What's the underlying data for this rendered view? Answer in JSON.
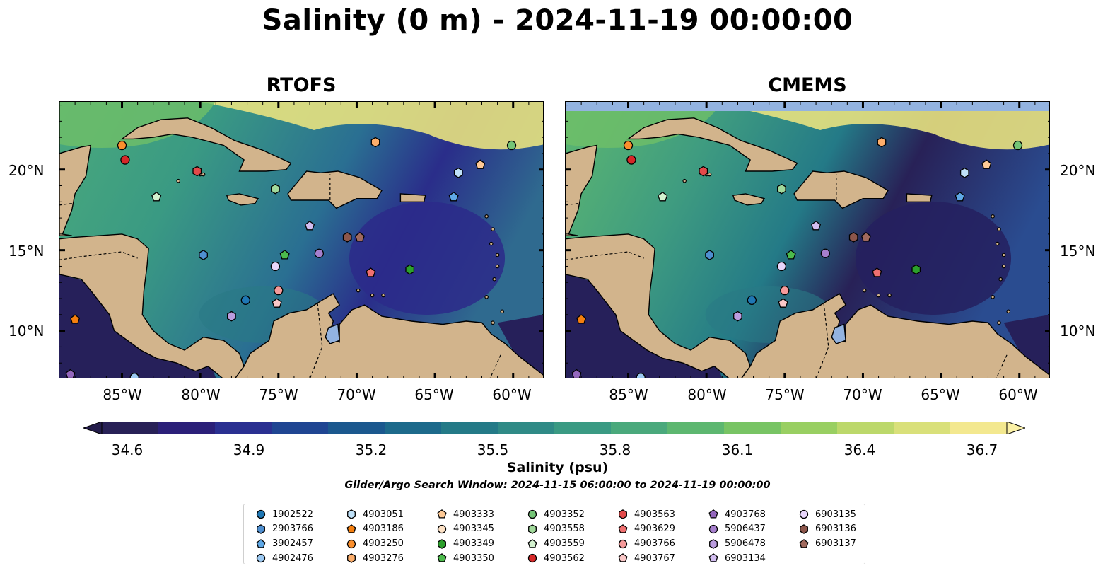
{
  "title": "Salinity (0 m) - 2024-11-19 00:00:00",
  "panels": [
    {
      "title": "RTOFS"
    },
    {
      "title": "CMEMS"
    }
  ],
  "lat_labels": [
    "20°N",
    "15°N",
    "10°N"
  ],
  "lon_labels": [
    "85°W",
    "80°W",
    "75°W",
    "70°W",
    "65°W",
    "60°W"
  ],
  "colorbar": {
    "ticks": [
      "34.6",
      "34.9",
      "35.2",
      "35.5",
      "35.8",
      "36.1",
      "36.4",
      "36.7"
    ],
    "label": "Salinity (psu)",
    "colors": [
      "#282157",
      "#2b2079",
      "#2a3091",
      "#1f4592",
      "#1b588e",
      "#1d6a8b",
      "#247a87",
      "#2f8a86",
      "#3a9a83",
      "#4aa97c",
      "#5db770",
      "#78c464",
      "#99cf62",
      "#bcd86b",
      "#d9e07a",
      "#f3e88f"
    ]
  },
  "search_window": "Glider/Argo Search Window: 2024-11-15 06:00:00 to 2024-11-19 00:00:00",
  "legend": [
    {
      "id": "1902522",
      "shape": "circle",
      "color": "#1f77b4"
    },
    {
      "id": "2903766",
      "shape": "hexagon",
      "color": "#4f8fd0"
    },
    {
      "id": "3902457",
      "shape": "pentagon",
      "color": "#5fa8e6"
    },
    {
      "id": "4902476",
      "shape": "circle",
      "color": "#9cc9f2"
    },
    {
      "id": "4903051",
      "shape": "hexagon",
      "color": "#bfe1f8"
    },
    {
      "id": "4903186",
      "shape": "pentagon",
      "color": "#f57f0e"
    },
    {
      "id": "4903250",
      "shape": "circle",
      "color": "#fb8f2d"
    },
    {
      "id": "4903276",
      "shape": "hexagon",
      "color": "#fdae6b"
    },
    {
      "id": "4903333",
      "shape": "pentagon",
      "color": "#fdc996"
    },
    {
      "id": "4903345",
      "shape": "circle",
      "color": "#fde2c6"
    },
    {
      "id": "4903349",
      "shape": "hexagon",
      "color": "#2ca02c"
    },
    {
      "id": "4903350",
      "shape": "pentagon",
      "color": "#4cbb4c"
    },
    {
      "id": "4903352",
      "shape": "circle",
      "color": "#74c476"
    },
    {
      "id": "4903558",
      "shape": "hexagon",
      "color": "#a1d99b"
    },
    {
      "id": "4903559",
      "shape": "pentagon",
      "color": "#d3f2cf"
    },
    {
      "id": "4903562",
      "shape": "circle",
      "color": "#d62728"
    },
    {
      "id": "4903563",
      "shape": "hexagon",
      "color": "#e34a4a"
    },
    {
      "id": "4903629",
      "shape": "pentagon",
      "color": "#f07070"
    },
    {
      "id": "4903766",
      "shape": "circle",
      "color": "#f59a9a"
    },
    {
      "id": "4903767",
      "shape": "pentagon",
      "color": "#fac7c7"
    },
    {
      "id": "4903768",
      "shape": "pentagon",
      "color": "#9467bd"
    },
    {
      "id": "5906437",
      "shape": "circle",
      "color": "#a67fcd"
    },
    {
      "id": "5906478",
      "shape": "hexagon",
      "color": "#bb9ddf"
    },
    {
      "id": "6903134",
      "shape": "pentagon",
      "color": "#d2bdf0"
    },
    {
      "id": "6903135",
      "shape": "circle",
      "color": "#e8d6fb"
    },
    {
      "id": "6903136",
      "shape": "hexagon",
      "color": "#8c564b"
    },
    {
      "id": "6903137",
      "shape": "pentagon",
      "color": "#a0695d"
    }
  ],
  "floats": [
    {
      "id": "4903250",
      "lon": -85,
      "lat": 21.5
    },
    {
      "id": "4903562",
      "lon": -84.8,
      "lat": 20.6
    },
    {
      "id": "4903563",
      "lon": -80.2,
      "lat": 19.9
    },
    {
      "id": "4903559",
      "lon": -82.8,
      "lat": 18.3
    },
    {
      "id": "4903276",
      "lon": -68.8,
      "lat": 21.7
    },
    {
      "id": "4903333",
      "lon": -62.1,
      "lat": 20.3
    },
    {
      "id": "4903051",
      "lon": -63.5,
      "lat": 19.8
    },
    {
      "id": "4903352",
      "lon": -60.1,
      "lat": 21.5
    },
    {
      "id": "4903558",
      "lon": -75.2,
      "lat": 18.8
    },
    {
      "id": "3902457",
      "lon": -63.8,
      "lat": 18.3
    },
    {
      "id": "6903134",
      "lon": -73,
      "lat": 16.5
    },
    {
      "id": "6903136",
      "lon": -70.6,
      "lat": 15.8
    },
    {
      "id": "6903137",
      "lon": -69.8,
      "lat": 15.8
    },
    {
      "id": "2903766",
      "lon": -79.8,
      "lat": 14.7
    },
    {
      "id": "4903350",
      "lon": -74.6,
      "lat": 14.7
    },
    {
      "id": "5906437",
      "lon": -72.4,
      "lat": 14.8
    },
    {
      "id": "6903135",
      "lon": -75.2,
      "lat": 14
    },
    {
      "id": "4903629",
      "lon": -69.1,
      "lat": 13.6
    },
    {
      "id": "4903349",
      "lon": -66.6,
      "lat": 13.8
    },
    {
      "id": "4903766",
      "lon": -75,
      "lat": 12.5
    },
    {
      "id": "1902522",
      "lon": -77.1,
      "lat": 11.9
    },
    {
      "id": "4903767",
      "lon": -75.1,
      "lat": 11.7
    },
    {
      "id": "5906478",
      "lon": -78,
      "lat": 10.9
    },
    {
      "id": "4903186",
      "lon": -88,
      "lat": 10.7
    },
    {
      "id": "4903768",
      "lon": -88.3,
      "lat": 7.3
    },
    {
      "id": "4902476",
      "lon": -84.2,
      "lat": 7.1
    }
  ]
}
